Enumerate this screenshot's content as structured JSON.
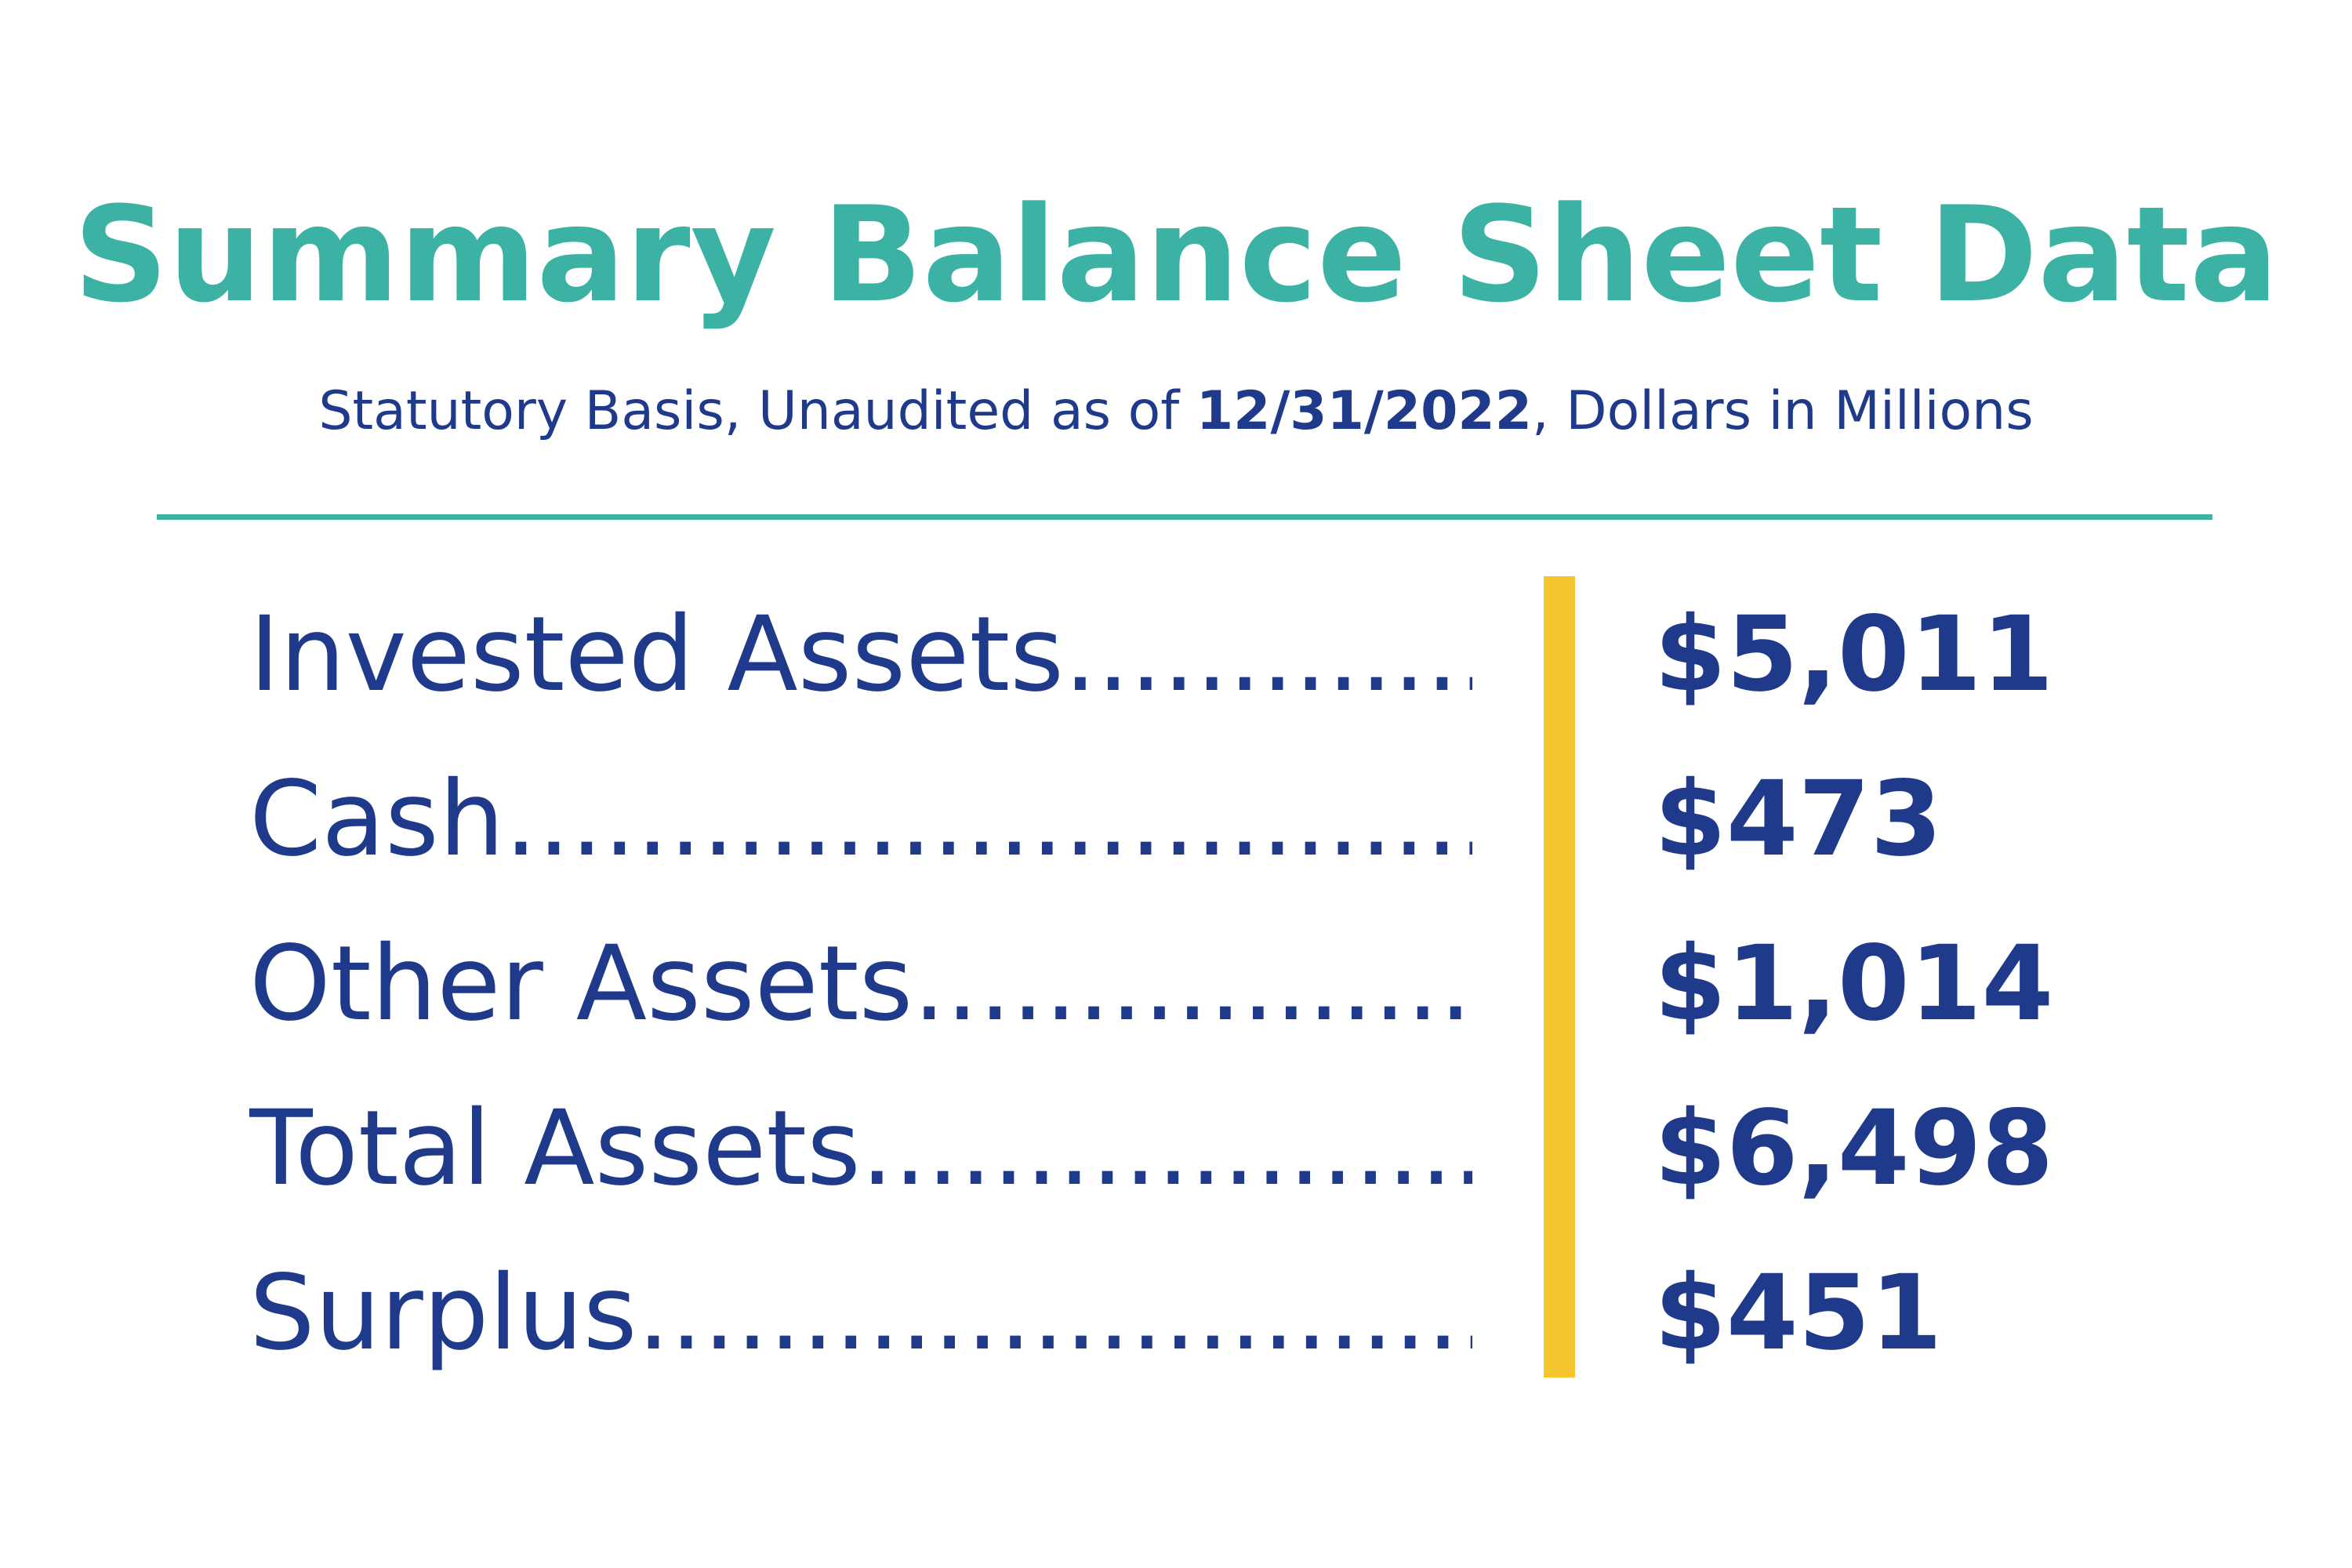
{
  "title": "Summary Balance Sheet Data",
  "subtitle": {
    "prefix": "Statutory Basis, Unaudited as of ",
    "date": "12/31/2022",
    "suffix": ", Dollars in Millions"
  },
  "rows": [
    {
      "label": "Invested Assets.............",
      "value": "$5,011"
    },
    {
      "label": "Cash.................................",
      "value": "$473"
    },
    {
      "label": "Other Assets..................",
      "value": "$1,014"
    },
    {
      "label": "Total Assets....................",
      "value": "$6,498"
    },
    {
      "label": "Surplus...........................",
      "value": "$451"
    }
  ],
  "colors": {
    "title": "#3BB2A4",
    "text": "#1F3A8A",
    "rule": "#3BB2A4",
    "divider": "#F5C52E"
  }
}
